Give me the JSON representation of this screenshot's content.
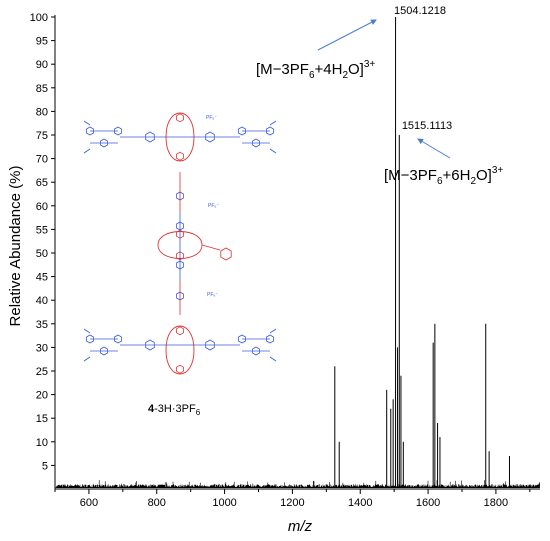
{
  "chart_data": {
    "type": "line",
    "xlabel": "m/z",
    "ylabel": "Relative Abundance (%)",
    "xlim": [
      500,
      1930
    ],
    "ylim": [
      0,
      100
    ],
    "xticks": [
      600,
      800,
      1000,
      1200,
      1400,
      1600,
      1800
    ],
    "yticks": [
      5,
      10,
      15,
      20,
      25,
      30,
      35,
      40,
      45,
      50,
      55,
      60,
      65,
      70,
      75,
      80,
      85,
      90,
      95,
      100
    ],
    "grid": false,
    "peaks": [
      {
        "mz": 1325,
        "abundance": 26
      },
      {
        "mz": 1338,
        "abundance": 10
      },
      {
        "mz": 1478,
        "abundance": 21
      },
      {
        "mz": 1490,
        "abundance": 17
      },
      {
        "mz": 1497,
        "abundance": 19
      },
      {
        "mz": 1504.1218,
        "abundance": 100
      },
      {
        "mz": 1510,
        "abundance": 30
      },
      {
        "mz": 1515.1113,
        "abundance": 75
      },
      {
        "mz": 1520,
        "abundance": 24
      },
      {
        "mz": 1527,
        "abundance": 10
      },
      {
        "mz": 1615,
        "abundance": 31
      },
      {
        "mz": 1620,
        "abundance": 35
      },
      {
        "mz": 1628,
        "abundance": 14
      },
      {
        "mz": 1635,
        "abundance": 11
      },
      {
        "mz": 1770,
        "abundance": 35
      },
      {
        "mz": 1780,
        "abundance": 8
      },
      {
        "mz": 1840,
        "abundance": 7
      }
    ],
    "annotations": {
      "peak_1": {
        "text": "1504.1218"
      },
      "peak_2": {
        "text": "1515.1113"
      },
      "ion_1": {
        "main": "[M−3PF",
        "sub1": "6",
        "mid": "+4H",
        "sub2": "2",
        "end": "O]",
        "sup": "3+"
      },
      "ion_2": {
        "main": "[M−3PF",
        "sub1": "6",
        "mid": "+6H",
        "sub2": "2",
        "end": "O]",
        "sup": "3+"
      }
    },
    "compound_label": {
      "bold": "4",
      "rest": "-3H·3PF",
      "sub": "6"
    },
    "counterion_label": "PF₆⁻"
  },
  "colors": {
    "spectrum": "#000000",
    "arrow": "#4a7fc8",
    "molecule_blue": "#3b5bdb",
    "molecule_red": "#e03131"
  }
}
